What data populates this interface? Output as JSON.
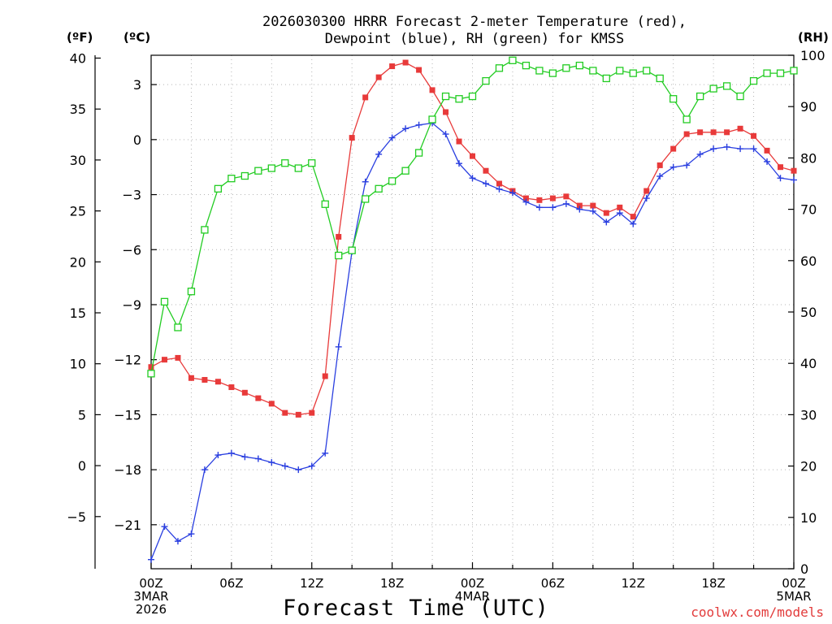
{
  "title": {
    "line1": "2026030300 HRRR Forecast 2-meter Temperature (red),",
    "line2": "Dewpoint (blue), RH (green) for KMSS"
  },
  "units": {
    "fahrenheit": "(ºF)",
    "celsius": "(ºC)",
    "rh": "(RH)"
  },
  "credit": "coolwx.com/models",
  "chart_data": {
    "type": "line",
    "title": "2026030300 HRRR Forecast 2-meter Temperature (red), Dewpoint (blue), RH (green) for KMSS",
    "xlabel": "Forecast Time (UTC)",
    "x": [
      0,
      1,
      2,
      3,
      4,
      5,
      6,
      7,
      8,
      9,
      10,
      11,
      12,
      13,
      14,
      15,
      16,
      17,
      18,
      19,
      20,
      21,
      22,
      23,
      24,
      25,
      26,
      27,
      28,
      29,
      30,
      31,
      32,
      33,
      34,
      35,
      36,
      37,
      38,
      39,
      40,
      41,
      42,
      43,
      44,
      45,
      46,
      47,
      48
    ],
    "x_ticks": [
      {
        "hour": 0,
        "labels": [
          "00Z",
          "3MAR",
          "2026"
        ]
      },
      {
        "hour": 6,
        "labels": [
          "06Z"
        ]
      },
      {
        "hour": 12,
        "labels": [
          "12Z"
        ]
      },
      {
        "hour": 18,
        "labels": [
          "18Z"
        ]
      },
      {
        "hour": 24,
        "labels": [
          "00Z",
          "4MAR"
        ]
      },
      {
        "hour": 30,
        "labels": [
          "06Z"
        ]
      },
      {
        "hour": 36,
        "labels": [
          "12Z"
        ]
      },
      {
        "hour": 42,
        "labels": [
          "18Z"
        ]
      },
      {
        "hour": 48,
        "labels": [
          "00Z",
          "5MAR"
        ]
      }
    ],
    "xlim": [
      0,
      48
    ],
    "y_left_celsius": {
      "lim": [
        -23.4,
        4.6
      ],
      "ticks": [
        3,
        0,
        -3,
        -6,
        -9,
        -12,
        -15,
        -18,
        -21
      ],
      "tick_labels": [
        "3",
        "0",
        "−3",
        "−6",
        "−9",
        "−12",
        "−15",
        "−18",
        "−21"
      ]
    },
    "y_left_fahrenheit": {
      "ticks": [
        40,
        35,
        30,
        25,
        20,
        15,
        10,
        5,
        0,
        -5
      ],
      "tick_labels": [
        "40",
        "35",
        "30",
        "25",
        "20",
        "15",
        "10",
        "5",
        "0",
        "−5"
      ]
    },
    "y_right_rh": {
      "lim": [
        0,
        100
      ],
      "ticks": [
        0,
        10,
        20,
        30,
        40,
        50,
        60,
        70,
        80,
        90,
        100
      ],
      "tick_labels": [
        "0",
        "10",
        "20",
        "30",
        "40",
        "50",
        "60",
        "70",
        "80",
        "90",
        "100"
      ]
    },
    "grid": true,
    "series": [
      {
        "color": "#e83a3a",
        "marker": "filled-square",
        "axis": "celsius",
        "values": [
          -12.4,
          -12.0,
          -11.9,
          -13.0,
          -13.1,
          -13.2,
          -13.5,
          -13.8,
          -14.1,
          -14.4,
          -14.9,
          -15.0,
          -14.9,
          -12.9,
          -5.3,
          0.1,
          2.3,
          3.4,
          4.0,
          4.2,
          3.8,
          2.7,
          1.5,
          -0.1,
          -0.9,
          -1.7,
          -2.4,
          -2.8,
          -3.2,
          -3.3,
          -3.2,
          -3.1,
          -3.6,
          -3.6,
          -4.0,
          -3.7,
          -4.2,
          -2.8,
          -1.4,
          -0.5,
          0.3,
          0.4,
          0.4,
          0.4,
          0.6,
          0.2,
          -0.6,
          -1.5,
          -1.7
        ]
      },
      {
        "color": "#2a3fe0",
        "marker": "plus",
        "axis": "celsius",
        "values": [
          -22.9,
          -21.1,
          -21.9,
          -21.5,
          -18.0,
          -17.2,
          -17.1,
          -17.3,
          -17.4,
          -17.6,
          -17.8,
          -18.0,
          -17.8,
          -17.1,
          -11.3,
          -6.1,
          -2.3,
          -0.8,
          0.1,
          0.6,
          0.8,
          0.9,
          0.3,
          -1.3,
          -2.1,
          -2.4,
          -2.7,
          -2.9,
          -3.4,
          -3.7,
          -3.7,
          -3.5,
          -3.8,
          -3.9,
          -4.5,
          -4.0,
          -4.6,
          -3.2,
          -2.0,
          -1.5,
          -1.4,
          -0.8,
          -0.5,
          -0.4,
          -0.5,
          -0.5,
          -1.2,
          -2.1,
          -2.2
        ]
      },
      {
        "color": "#22cc22",
        "marker": "open-square",
        "axis": "rh",
        "values": [
          38,
          52,
          47,
          54,
          66,
          74,
          76,
          76.5,
          77.5,
          78,
          79,
          78,
          79,
          71,
          61,
          62,
          72,
          74,
          75.5,
          77.5,
          81,
          87.5,
          92,
          91.5,
          92,
          95,
          97.5,
          99,
          98,
          97,
          96.5,
          97.5,
          98,
          97,
          95.5,
          97,
          96.5,
          97,
          95.5,
          91.5,
          87.5,
          92,
          93.5,
          94,
          92,
          95,
          96.5,
          96.5,
          97
        ]
      }
    ]
  }
}
